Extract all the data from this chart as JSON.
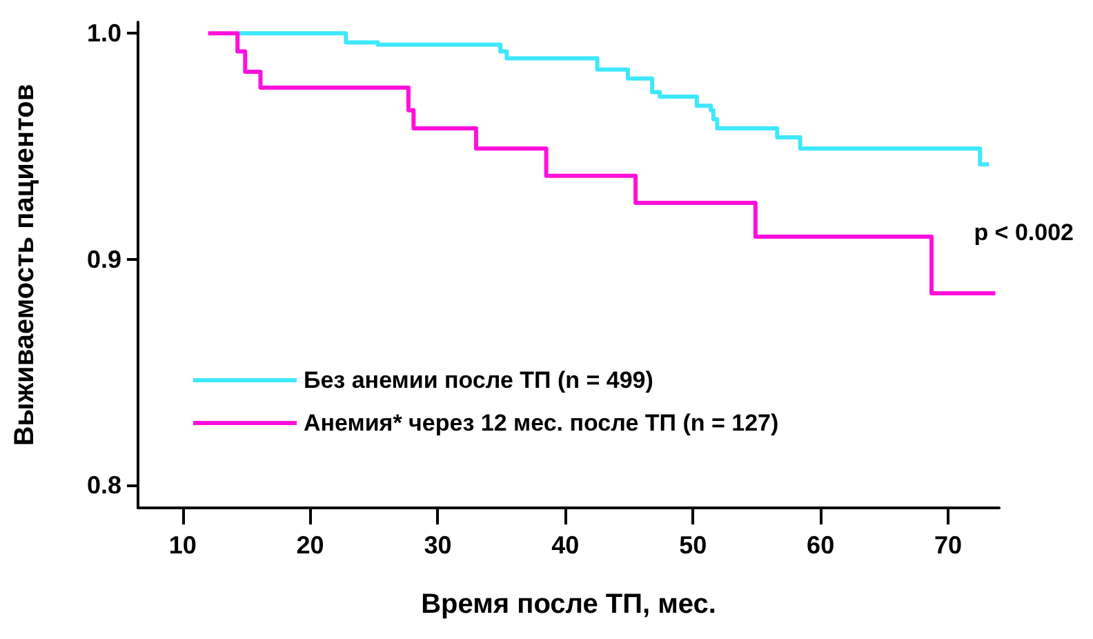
{
  "chart_data": {
    "type": "step",
    "xlabel": "Время после ТП, мес.",
    "ylabel": "Выживаемость пациентов",
    "xlim": [
      6.5,
      74
    ],
    "xticks": [
      10,
      20,
      30,
      40,
      50,
      60,
      70
    ],
    "ylim": [
      0.79,
      1.005
    ],
    "yticks": [
      {
        "value": 0.8,
        "label": "0.8"
      },
      {
        "value": 0.9,
        "label": "0.9"
      },
      {
        "value": 1.0,
        "label": "1.0"
      }
    ],
    "grid": false,
    "legend": "bottom left",
    "marker": "none",
    "line_style": "solid",
    "annotations": [
      "p < 0.002"
    ],
    "series": [
      {
        "name": "Без анемии после ТП (n = 499)",
        "color": "#3ee8fc",
        "x": [
          14.3,
          22.8,
          25.3,
          34.9,
          35.4,
          42.5,
          44.9,
          46.8,
          47.4,
          50.3,
          51.4,
          51.6,
          51.9,
          56.6,
          58.4,
          72.5,
          73.2
        ],
        "values": [
          1.0,
          0.996,
          0.995,
          0.992,
          0.989,
          0.984,
          0.98,
          0.974,
          0.972,
          0.968,
          0.966,
          0.962,
          0.958,
          0.954,
          0.949,
          0.942,
          0.942
        ]
      },
      {
        "name": "Анемия* через 12 мес. после ТП (n = 127)",
        "color": "#ff10dc",
        "x": [
          12,
          14.3,
          14.9,
          16.1,
          27.7,
          28.1,
          33.0,
          38.5,
          45.5,
          54.9,
          68.7,
          73.7
        ],
        "values": [
          1.0,
          0.992,
          0.983,
          0.976,
          0.966,
          0.958,
          0.949,
          0.937,
          0.925,
          0.91,
          0.885,
          0.885
        ]
      }
    ]
  }
}
